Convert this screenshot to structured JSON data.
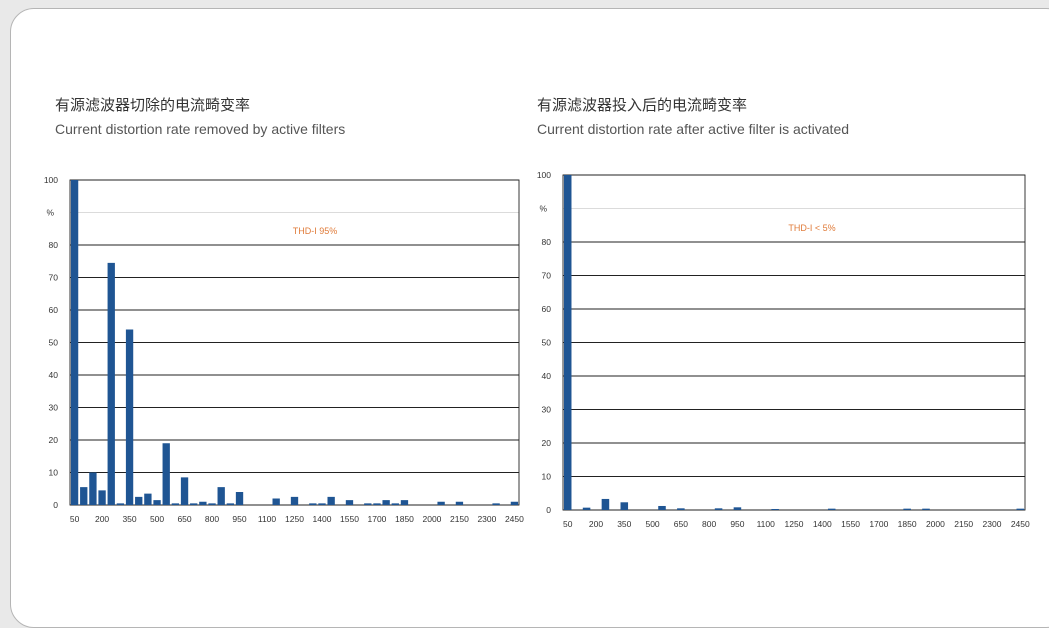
{
  "left": {
    "title_cn": "有源滤波器切除的电流畸变率",
    "title_en": "Current distortion rate removed by active filters"
  },
  "right": {
    "title_cn": "有源滤波器投入后的电流畸变率",
    "title_en": "Current distortion rate after active filter is activated"
  },
  "colors": {
    "bar": "#1f5593",
    "annotation": "#e07b39",
    "card_bg": "#ffffff",
    "page_bg": "#e9e9e9"
  },
  "chart_data": [
    {
      "type": "bar",
      "unit_label": "%",
      "annotation": "THD-I 95%",
      "ylim": [
        0,
        100
      ],
      "yticks": [
        0,
        10,
        20,
        30,
        40,
        50,
        60,
        70,
        80,
        100
      ],
      "xtick_labels": [
        "50",
        "200",
        "350",
        "500",
        "650",
        "800",
        "950",
        "1100",
        "1250",
        "1400",
        "1550",
        "1700",
        "1850",
        "2000",
        "2150",
        "2300",
        "2450"
      ],
      "categories": [
        50,
        100,
        150,
        200,
        250,
        300,
        350,
        400,
        450,
        500,
        550,
        600,
        650,
        700,
        750,
        800,
        850,
        900,
        950,
        1000,
        1050,
        1100,
        1150,
        1200,
        1250,
        1300,
        1350,
        1400,
        1450,
        1500,
        1550,
        1600,
        1650,
        1700,
        1750,
        1800,
        1850,
        1900,
        1950,
        2000,
        2050,
        2100,
        2150,
        2200,
        2250,
        2300,
        2350,
        2400,
        2450
      ],
      "values": [
        100,
        5.5,
        10,
        4.5,
        74.5,
        0.5,
        54,
        2.5,
        3.5,
        1.5,
        19,
        0.5,
        8.5,
        0.5,
        1,
        0.5,
        5.5,
        0.5,
        4,
        0,
        0,
        0,
        2,
        0,
        2.5,
        0,
        0.5,
        0.5,
        2.5,
        0,
        1.5,
        0,
        0.5,
        0.5,
        1.5,
        0.5,
        1.5,
        0,
        0,
        0,
        1,
        0,
        1,
        0,
        0,
        0,
        0.5,
        0,
        1
      ]
    },
    {
      "type": "bar",
      "unit_label": "%",
      "annotation": "THD-I < 5%",
      "ylim": [
        0,
        100
      ],
      "yticks": [
        0,
        10,
        20,
        30,
        40,
        50,
        60,
        70,
        80,
        100
      ],
      "xtick_labels": [
        "50",
        "200",
        "350",
        "500",
        "650",
        "800",
        "950",
        "1100",
        "1250",
        "1400",
        "1550",
        "1700",
        "1850",
        "2000",
        "2150",
        "2300",
        "2450"
      ],
      "categories": [
        50,
        100,
        150,
        200,
        250,
        300,
        350,
        400,
        450,
        500,
        550,
        600,
        650,
        700,
        750,
        800,
        850,
        900,
        950,
        1000,
        1050,
        1100,
        1150,
        1200,
        1250,
        1300,
        1350,
        1400,
        1450,
        1500,
        1550,
        1600,
        1650,
        1700,
        1750,
        1800,
        1850,
        1900,
        1950,
        2000,
        2050,
        2100,
        2150,
        2200,
        2250,
        2300,
        2350,
        2400,
        2450
      ],
      "values": [
        100,
        0,
        0.7,
        0,
        3.3,
        0,
        2.3,
        0,
        0,
        0,
        1.2,
        0,
        0.5,
        0,
        0,
        0,
        0.5,
        0,
        0.8,
        0,
        0,
        0,
        0.3,
        0,
        0,
        0,
        0,
        0,
        0.4,
        0,
        0,
        0,
        0,
        0,
        0,
        0,
        0.4,
        0,
        0.4,
        0,
        0,
        0,
        0,
        0,
        0,
        0,
        0,
        0,
        0.4
      ]
    }
  ]
}
